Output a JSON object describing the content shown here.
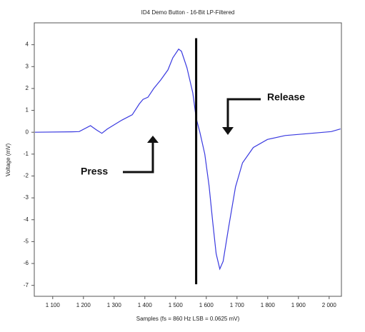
{
  "chart_data": {
    "type": "line",
    "title": "ID4 Demo Button - 16-Bit LP-Filtered",
    "x_label": "Samples (fs = 860 Hz LSB = 0.0625 mV)",
    "y_label": "Voltage (mV)",
    "x": [
      1042,
      1162,
      1186,
      1223,
      1243,
      1260,
      1278,
      1325,
      1359,
      1382,
      1394,
      1410,
      1429,
      1452,
      1475,
      1491,
      1510,
      1519,
      1537,
      1556,
      1567,
      1579,
      1595,
      1609,
      1621,
      1632,
      1644,
      1655,
      1672,
      1695,
      1718,
      1753,
      1799,
      1857,
      1926,
      2007,
      2037
    ],
    "series": [
      {
        "name": "Voltage",
        "color": "#3a3ae0",
        "values": [
          0,
          0.02,
          0.03,
          0.3,
          0.1,
          -0.05,
          0.15,
          0.55,
          0.8,
          1.3,
          1.5,
          1.6,
          2.0,
          2.4,
          2.85,
          3.4,
          3.8,
          3.7,
          2.95,
          1.8,
          0.65,
          0,
          -1.0,
          -2.45,
          -4.1,
          -5.55,
          -6.25,
          -5.9,
          -4.4,
          -2.5,
          -1.4,
          -0.7,
          -0.33,
          -0.15,
          -0.07,
          0.03,
          0.15
        ]
      }
    ],
    "xlim": [
      1040,
      2040
    ],
    "ylim": [
      -7.5,
      5
    ],
    "xticks": [
      {
        "value": 1100,
        "label": "1 100"
      },
      {
        "value": 1200,
        "label": "1 200"
      },
      {
        "value": 1300,
        "label": "1 300"
      },
      {
        "value": 1400,
        "label": "1 400"
      },
      {
        "value": 1500,
        "label": "1 500"
      },
      {
        "value": 1600,
        "label": "1 600"
      },
      {
        "value": 1700,
        "label": "1 700"
      },
      {
        "value": 1800,
        "label": "1 800"
      },
      {
        "value": 1900,
        "label": "1 900"
      },
      {
        "value": 2000,
        "label": "2 000"
      }
    ],
    "yticks": [
      -7,
      -6,
      -5,
      -4,
      -3,
      -2,
      -1,
      0,
      1,
      2,
      3,
      4
    ],
    "vline": {
      "x": 1567,
      "ymin": -6.95,
      "ymax": 4.3,
      "color": "#000000"
    },
    "annotations": [
      "Press",
      "Release"
    ]
  }
}
